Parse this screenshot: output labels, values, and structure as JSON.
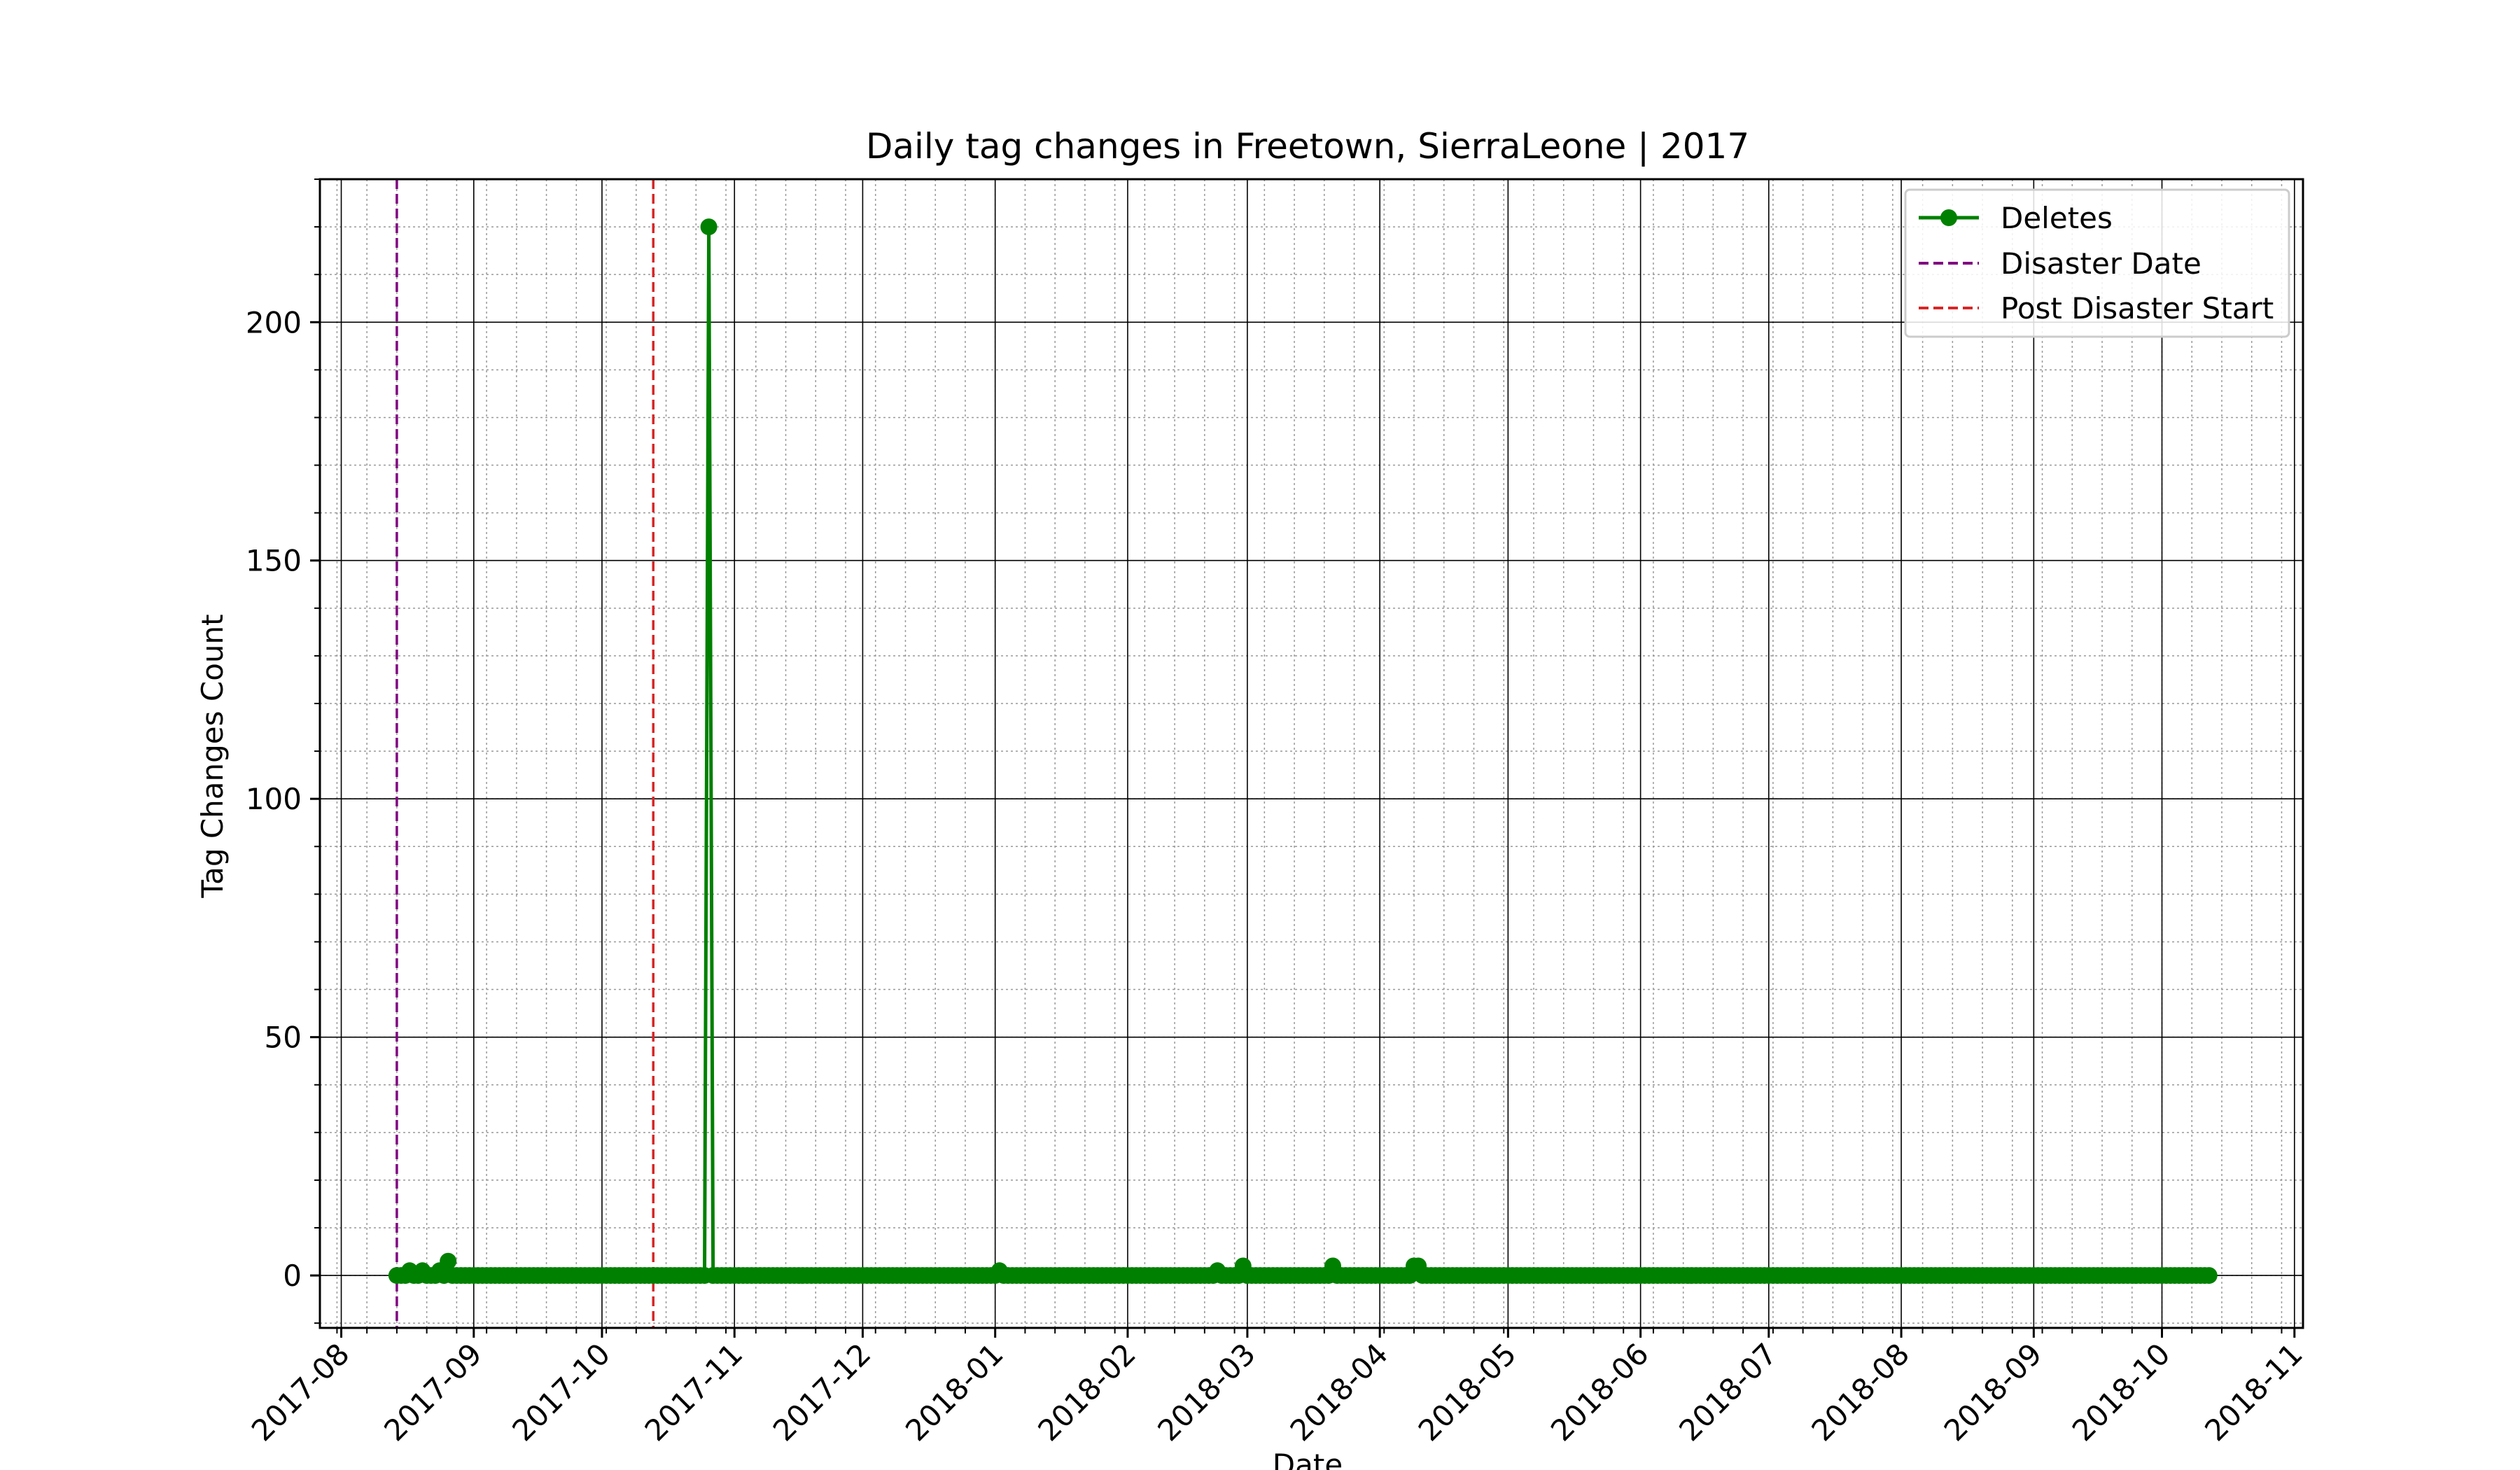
{
  "chart_data": {
    "type": "line",
    "title": "Daily tag changes in Freetown, SierraLeone | 2017",
    "xlabel": "Date",
    "ylabel": "Tag Changes Count",
    "xlim": [
      "2017-07-27",
      "2018-11-03"
    ],
    "ylim": [
      -11,
      230
    ],
    "grid": "major and minor",
    "legend_position": "top-right",
    "y_ticks": [
      0,
      50,
      100,
      150,
      200
    ],
    "x_ticks": [
      "2017-08-01",
      "2017-09-01",
      "2017-10-01",
      "2017-11-01",
      "2017-12-01",
      "2018-01-01",
      "2018-02-01",
      "2018-03-01",
      "2018-04-01",
      "2018-05-01",
      "2018-06-01",
      "2018-07-01",
      "2018-08-01",
      "2018-09-01",
      "2018-10-01",
      "2018-11-01"
    ],
    "x_tick_labels": [
      "2017-08",
      "2017-09",
      "2017-10",
      "2017-11",
      "2017-12",
      "2018-01",
      "2018-02",
      "2018-03",
      "2018-04",
      "2018-05",
      "2018-06",
      "2018-07",
      "2018-08",
      "2018-09",
      "2018-10",
      "2018-11"
    ],
    "series": [
      {
        "name": "Deletes",
        "color": "#008000",
        "start": "2017-08-14",
        "end": "2018-10-12",
        "baseline": 0,
        "points": [
          {
            "date": "2017-08-17",
            "value": 1
          },
          {
            "date": "2017-08-20",
            "value": 1
          },
          {
            "date": "2017-08-24",
            "value": 1
          },
          {
            "date": "2017-08-26",
            "value": 3
          },
          {
            "date": "2017-10-26",
            "value": 220
          },
          {
            "date": "2018-01-02",
            "value": 1
          },
          {
            "date": "2018-02-22",
            "value": 1
          },
          {
            "date": "2018-02-28",
            "value": 2
          },
          {
            "date": "2018-03-21",
            "value": 2
          },
          {
            "date": "2018-04-09",
            "value": 2
          },
          {
            "date": "2018-04-10",
            "value": 2
          }
        ]
      }
    ],
    "vlines": [
      {
        "name": "Disaster Date",
        "date": "2017-08-14",
        "color": "#800080",
        "style": "dashed"
      },
      {
        "name": "Post Disaster Start",
        "date": "2017-10-13",
        "color": "#d62728",
        "style": "dashed"
      }
    ],
    "legend": [
      "Deletes",
      "Disaster Date",
      "Post Disaster Start"
    ]
  }
}
